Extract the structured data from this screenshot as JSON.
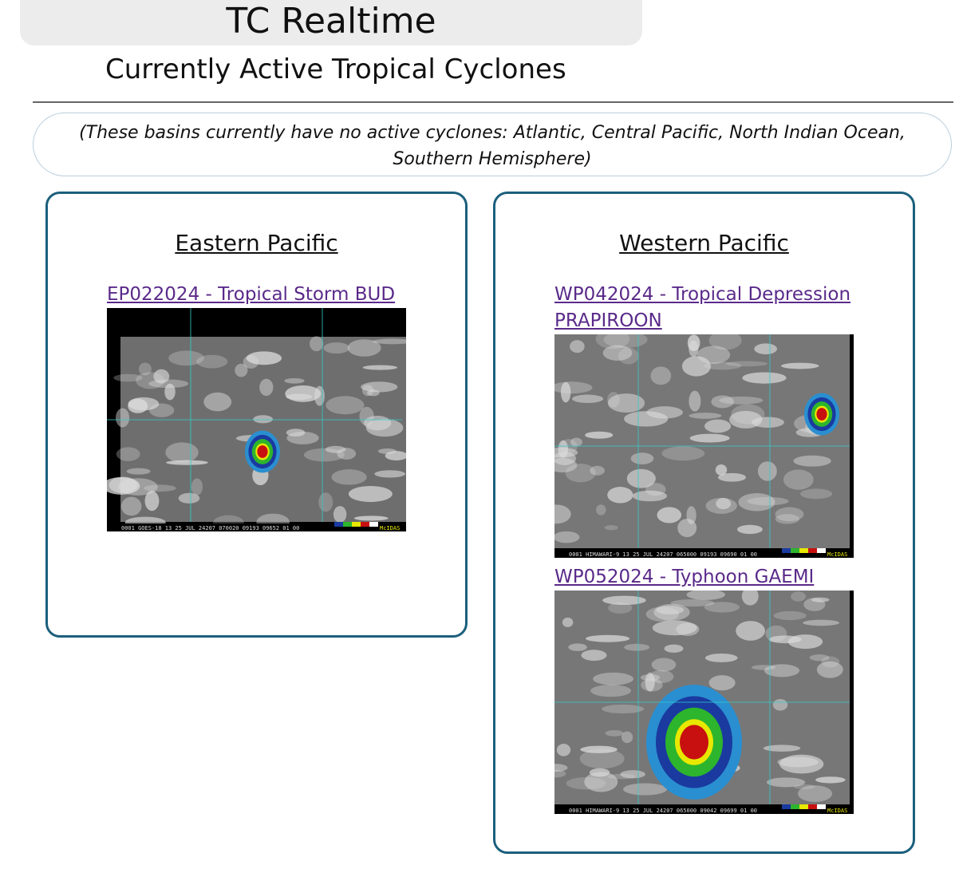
{
  "header": {
    "title": "TC Realtime",
    "subtitle": "Currently Active Tropical Cyclones"
  },
  "notice": "(These basins currently have no active cyclones: Atlantic, Central Pacific, North Indian Ocean, Southern Hemisphere)",
  "basins": [
    {
      "name": "Eastern Pacific",
      "storms": [
        {
          "link": "EP022024 - Tropical Storm BUD",
          "image_caption": "0001 GOES-18   13 25 JUL 24207 070020 09193 09652 01 00",
          "image_logo": "McIDAS"
        }
      ]
    },
    {
      "name": "Western Pacific",
      "storms": [
        {
          "link": "WP042024 - Tropical Depression PRAPIROON",
          "image_caption": "0001 HIMAWARI-9 13 25 JUL 24207 065000 09193 09690 01 00",
          "image_logo": "McIDAS"
        },
        {
          "link": "WP052024 - Typhoon GAEMI",
          "image_caption": "0001 HIMAWARI-9 13 25 JUL 24207 065000 09042 09699 01 00",
          "image_logo": "McIDAS"
        }
      ]
    }
  ]
}
